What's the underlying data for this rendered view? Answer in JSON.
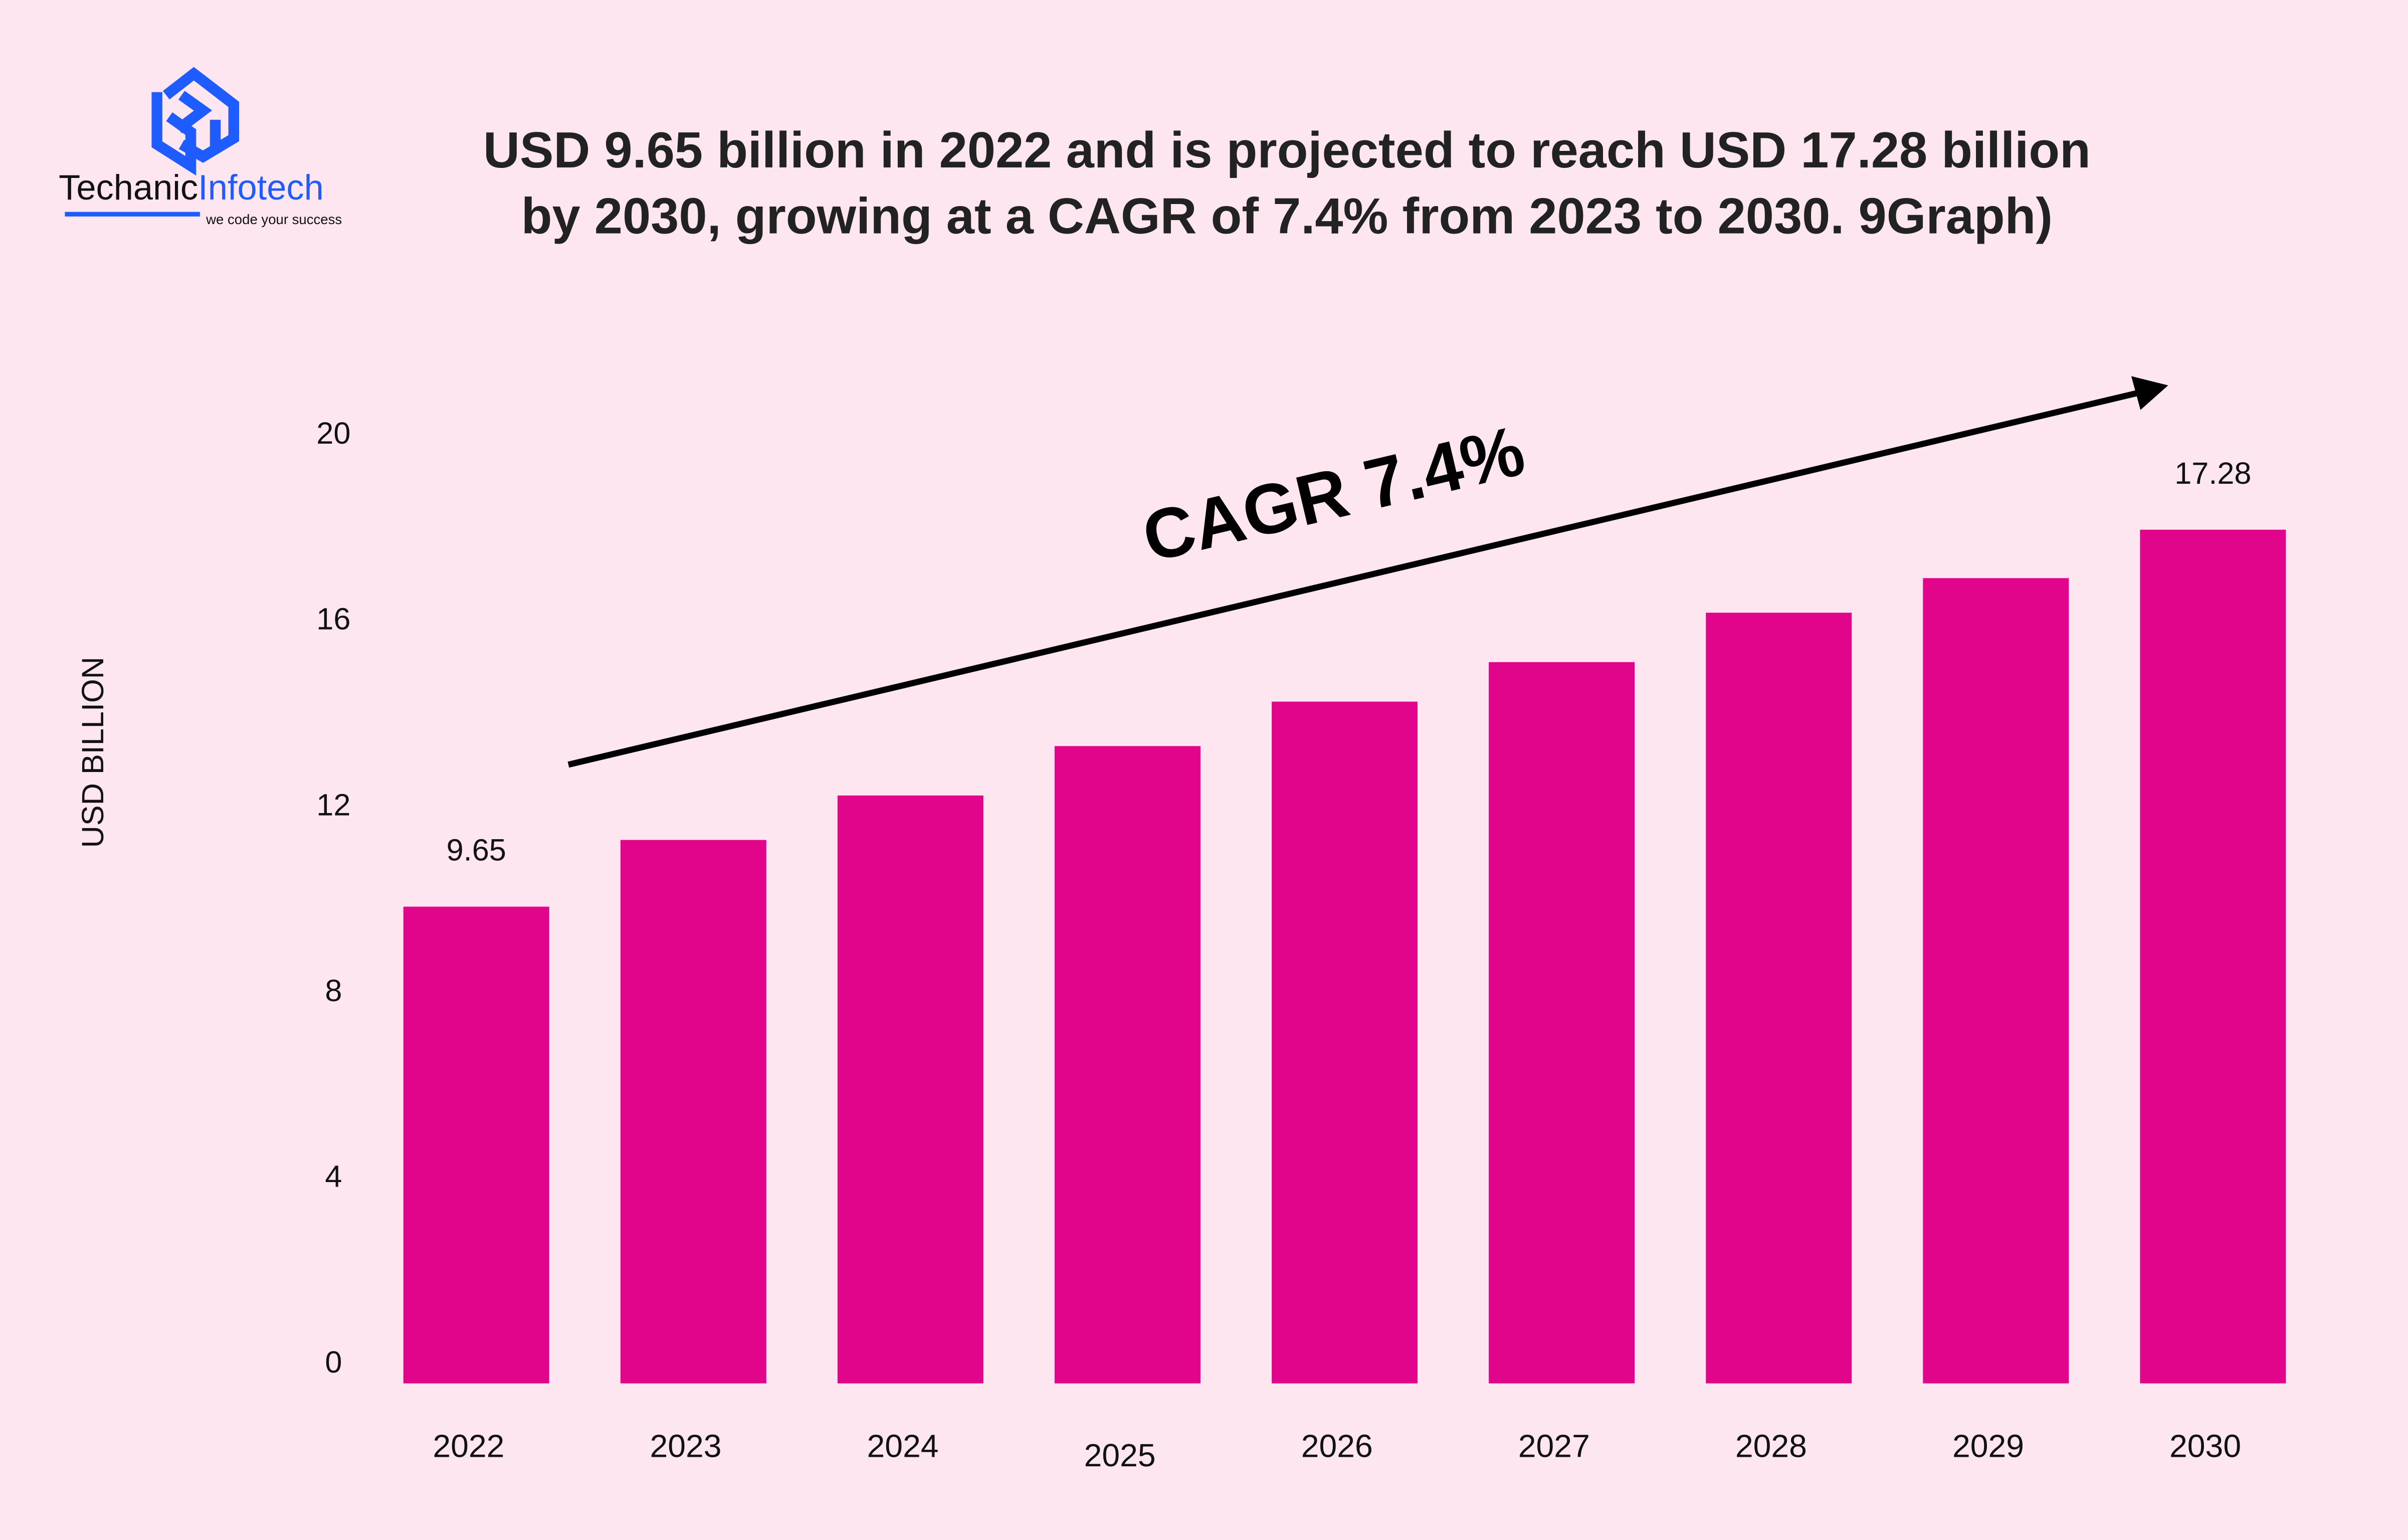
{
  "brand": {
    "name_part1": "Techanic",
    "name_part2": "Infotech",
    "tagline": "we code your success",
    "logo_color": "#1f5cff"
  },
  "colors": {
    "background": "#fde6ef",
    "bar": "#e0058a",
    "text": "#222222"
  },
  "chart_data": {
    "type": "bar",
    "title_line1": "USD 9.65 billion in 2022 and is projected to reach USD 17.28 billion",
    "title_line2": "by 2030, growing at a CAGR of 7.4% from 2023 to 2030.  9Graph)",
    "ylabel": "USD BILLION",
    "xlabel": "",
    "categories": [
      "2022",
      "2023",
      "2024",
      "2025",
      "2026",
      "2027",
      "2028",
      "2029",
      "2030"
    ],
    "values": [
      9.65,
      11.0,
      11.9,
      12.9,
      13.8,
      14.6,
      15.6,
      16.3,
      17.28
    ],
    "data_labels": {
      "0": "9.65",
      "8": "17.28"
    },
    "yticks": [
      "0",
      "4",
      "8",
      "12",
      "16",
      "20"
    ],
    "ylim": [
      0,
      20
    ],
    "grid": false,
    "legend": "none",
    "annotation": "CAGR 7.4%"
  }
}
